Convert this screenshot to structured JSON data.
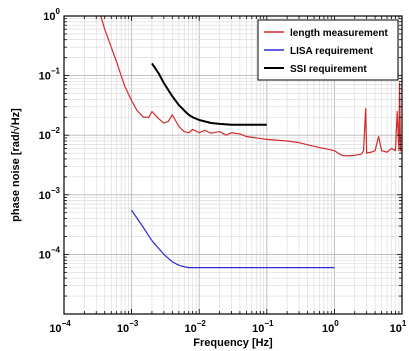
{
  "chart_data": {
    "type": "line",
    "title": "",
    "xlabel": "Frequency [Hz]",
    "ylabel": "phase noise [rad/√Hz]",
    "xscale": "log",
    "yscale": "log",
    "xlim": [
      0.0001,
      10
    ],
    "ylim": [
      1e-05,
      1
    ],
    "grid": true,
    "legend_position": "top-right",
    "x_ticks": [
      {
        "base": "10",
        "exp": "−4"
      },
      {
        "base": "10",
        "exp": "−3"
      },
      {
        "base": "10",
        "exp": "−2"
      },
      {
        "base": "10",
        "exp": "−1"
      },
      {
        "base": "10",
        "exp": "0"
      },
      {
        "base": "10",
        "exp": "1"
      }
    ],
    "y_ticks": [
      {
        "base": "10",
        "exp": "0"
      },
      {
        "base": "10",
        "exp": "−1"
      },
      {
        "base": "10",
        "exp": "−2"
      },
      {
        "base": "10",
        "exp": "−3"
      },
      {
        "base": "10",
        "exp": "−4"
      }
    ],
    "series": [
      {
        "name": "length measurement",
        "color": "#d42a2a",
        "x": [
          0.00035,
          0.0004,
          0.0005,
          0.0006,
          0.0007,
          0.0008,
          0.001,
          0.0012,
          0.0015,
          0.0018,
          0.002,
          0.0025,
          0.003,
          0.0035,
          0.004,
          0.005,
          0.006,
          0.007,
          0.008,
          0.01,
          0.012,
          0.015,
          0.02,
          0.025,
          0.03,
          0.04,
          0.05,
          0.07,
          0.1,
          0.15,
          0.2,
          0.3,
          0.5,
          0.7,
          1.0,
          1.2,
          1.3,
          1.5,
          2.0,
          2.5,
          2.7,
          2.9,
          3.0,
          3.5,
          4.0,
          4.5,
          5.0,
          6.0,
          7.0,
          8.0,
          8.5,
          9.0,
          9.2,
          9.5,
          10.0
        ],
        "y": [
          1.0,
          0.6,
          0.3,
          0.17,
          0.1,
          0.065,
          0.038,
          0.026,
          0.02,
          0.02,
          0.025,
          0.019,
          0.016,
          0.017,
          0.022,
          0.014,
          0.0115,
          0.011,
          0.0125,
          0.011,
          0.012,
          0.0108,
          0.0115,
          0.01,
          0.011,
          0.0105,
          0.0095,
          0.009,
          0.0085,
          0.0082,
          0.008,
          0.0075,
          0.0065,
          0.006,
          0.0055,
          0.0048,
          0.0046,
          0.0045,
          0.0046,
          0.0048,
          0.0055,
          0.028,
          0.005,
          0.0052,
          0.0055,
          0.0095,
          0.0055,
          0.0052,
          0.006,
          0.0055,
          0.025,
          0.0055,
          0.075,
          0.0055,
          0.0055
        ]
      },
      {
        "name": "LISA requirement",
        "color": "#2b2bd6",
        "x": [
          0.001,
          0.0015,
          0.002,
          0.003,
          0.004,
          0.005,
          0.006,
          0.007,
          0.01,
          0.1,
          1.0
        ],
        "y": [
          0.00055,
          0.00028,
          0.00017,
          0.0001,
          7.5e-05,
          6.6e-05,
          6.2e-05,
          6e-05,
          6e-05,
          6e-05,
          6e-05
        ]
      },
      {
        "name": "SSI requirement",
        "color": "#000000",
        "x": [
          0.002,
          0.0025,
          0.003,
          0.004,
          0.005,
          0.006,
          0.007,
          0.008,
          0.01,
          0.015,
          0.02,
          0.03,
          0.05,
          0.07,
          0.1
        ],
        "y": [
          0.16,
          0.11,
          0.075,
          0.045,
          0.032,
          0.026,
          0.022,
          0.02,
          0.018,
          0.016,
          0.0155,
          0.015,
          0.015,
          0.015,
          0.015
        ]
      }
    ]
  }
}
